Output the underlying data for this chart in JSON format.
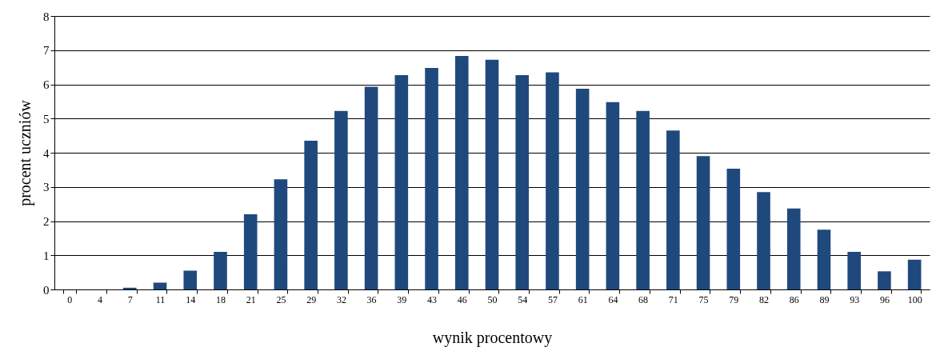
{
  "chart_data": {
    "type": "bar",
    "xlabel": "wynik procentowy",
    "ylabel": "procent uczniów",
    "categories": [
      "0",
      "4",
      "7",
      "11",
      "14",
      "18",
      "21",
      "25",
      "29",
      "32",
      "36",
      "39",
      "43",
      "46",
      "50",
      "54",
      "57",
      "61",
      "64",
      "68",
      "71",
      "75",
      "79",
      "82",
      "86",
      "89",
      "93",
      "96",
      "100"
    ],
    "values": [
      0,
      0,
      0.05,
      0.2,
      0.55,
      1.1,
      2.2,
      3.22,
      4.35,
      5.22,
      5.93,
      6.27,
      6.48,
      6.83,
      6.72,
      6.27,
      6.35,
      5.87,
      5.48,
      5.22,
      4.65,
      3.9,
      3.53,
      2.85,
      2.37,
      1.75,
      1.1,
      0.53,
      0.87
    ],
    "color": "#1f497d",
    "ylim": [
      0,
      8
    ],
    "yticks": [
      0,
      1,
      2,
      3,
      4,
      5,
      6,
      7,
      8
    ],
    "grid": "y"
  }
}
